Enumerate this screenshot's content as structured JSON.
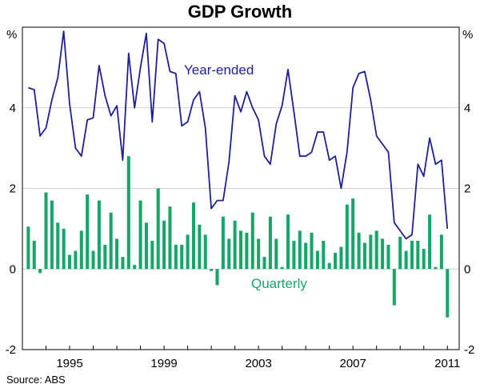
{
  "title": "GDP Growth",
  "source": "Source: ABS",
  "colors": {
    "year_ended": "#1f1f96",
    "quarterly": "#16a66a",
    "grid": "#cfcfcf",
    "frame": "#000000"
  },
  "chart_data": {
    "type": "bar",
    "title": "GDP Growth",
    "ylabel_left": "%",
    "ylabel_right": "%",
    "ylim": [
      -2,
      6
    ],
    "y_ticks": [
      -2,
      0,
      2,
      4
    ],
    "y_tick_labels": [
      "-2",
      "0",
      "2",
      "4"
    ],
    "x_tick_labels": [
      "1995",
      "1999",
      "2003",
      "2007",
      "2011"
    ],
    "x_tick_values": [
      1995,
      1999,
      2003,
      2007,
      2011
    ],
    "xlim": [
      1993.0,
      2011.5
    ],
    "grid": "horizontal",
    "annotations": {
      "year_ended": "Year-ended",
      "quarterly": "Quarterly"
    },
    "series": [
      {
        "name": "Quarterly",
        "type": "bar",
        "x": [
          1993.25,
          1993.5,
          1993.75,
          1994.0,
          1994.25,
          1994.5,
          1994.75,
          1995.0,
          1995.25,
          1995.5,
          1995.75,
          1996.0,
          1996.25,
          1996.5,
          1996.75,
          1997.0,
          1997.25,
          1997.5,
          1997.75,
          1998.0,
          1998.25,
          1998.5,
          1998.75,
          1999.0,
          1999.25,
          1999.5,
          1999.75,
          2000.0,
          2000.25,
          2000.5,
          2000.75,
          2001.0,
          2001.25,
          2001.5,
          2001.75,
          2002.0,
          2002.25,
          2002.5,
          2002.75,
          2003.0,
          2003.25,
          2003.5,
          2003.75,
          2004.0,
          2004.25,
          2004.5,
          2004.75,
          2005.0,
          2005.25,
          2005.5,
          2005.75,
          2006.0,
          2006.25,
          2006.5,
          2006.75,
          2007.0,
          2007.25,
          2007.5,
          2007.75,
          2008.0,
          2008.25,
          2008.5,
          2008.75,
          2009.0,
          2009.25,
          2009.5,
          2009.75,
          2010.0,
          2010.25,
          2010.5,
          2010.75,
          2011.0
        ],
        "values": [
          1.05,
          0.7,
          -0.1,
          1.9,
          1.7,
          1.15,
          1.0,
          0.35,
          0.45,
          0.95,
          1.85,
          0.45,
          1.7,
          0.6,
          1.4,
          0.75,
          0.3,
          2.8,
          0.1,
          1.7,
          1.15,
          0.7,
          2.0,
          1.2,
          1.55,
          0.6,
          0.6,
          0.85,
          1.65,
          1.1,
          0.85,
          -0.05,
          -0.4,
          1.3,
          0.75,
          1.2,
          0.95,
          0.9,
          1.4,
          0.75,
          0.3,
          1.3,
          0.75,
          0.05,
          1.35,
          0.7,
          0.95,
          0.65,
          0.9,
          0.45,
          0.7,
          0.15,
          0.4,
          0.55,
          1.6,
          1.75,
          0.9,
          0.65,
          0.85,
          0.95,
          0.75,
          0.6,
          -0.9,
          0.8,
          0.45,
          0.7,
          0.7,
          0.5,
          1.35,
          0.05,
          0.85,
          -1.2
        ]
      },
      {
        "name": "Year-ended",
        "type": "line",
        "x": [
          1993.25,
          1993.5,
          1993.75,
          1994.0,
          1994.25,
          1994.5,
          1994.75,
          1995.0,
          1995.25,
          1995.5,
          1995.75,
          1996.0,
          1996.25,
          1996.5,
          1996.75,
          1997.0,
          1997.25,
          1997.5,
          1997.75,
          1998.0,
          1998.25,
          1998.5,
          1998.75,
          1999.0,
          1999.25,
          1999.5,
          1999.75,
          2000.0,
          2000.25,
          2000.5,
          2000.75,
          2001.0,
          2001.25,
          2001.5,
          2001.75,
          2002.0,
          2002.25,
          2002.5,
          2002.75,
          2003.0,
          2003.25,
          2003.5,
          2003.75,
          2004.0,
          2004.25,
          2004.5,
          2004.75,
          2005.0,
          2005.25,
          2005.5,
          2005.75,
          2006.0,
          2006.25,
          2006.5,
          2006.75,
          2007.0,
          2007.25,
          2007.5,
          2007.75,
          2008.0,
          2008.25,
          2008.5,
          2008.75,
          2009.0,
          2009.25,
          2009.5,
          2009.75,
          2010.0,
          2010.25,
          2010.5,
          2010.75,
          2011.0
        ],
        "values": [
          4.5,
          4.45,
          3.3,
          3.5,
          4.2,
          4.75,
          5.9,
          4.1,
          3.0,
          2.8,
          3.7,
          3.75,
          5.05,
          4.3,
          3.8,
          4.05,
          2.7,
          5.35,
          4.0,
          5.0,
          5.85,
          3.65,
          5.7,
          5.6,
          4.9,
          4.85,
          3.55,
          3.65,
          4.2,
          4.4,
          3.5,
          1.5,
          1.7,
          1.7,
          2.65,
          4.3,
          3.9,
          4.4,
          4.0,
          3.7,
          2.8,
          2.6,
          3.6,
          4.05,
          4.95,
          3.9,
          2.8,
          2.8,
          2.9,
          3.4,
          3.4,
          2.7,
          2.8,
          2.0,
          2.9,
          4.5,
          4.85,
          4.9,
          4.2,
          3.3,
          3.1,
          2.9,
          1.15,
          0.95,
          0.75,
          0.85,
          2.6,
          2.3,
          3.25,
          2.6,
          2.7,
          1.0
        ]
      }
    ]
  }
}
